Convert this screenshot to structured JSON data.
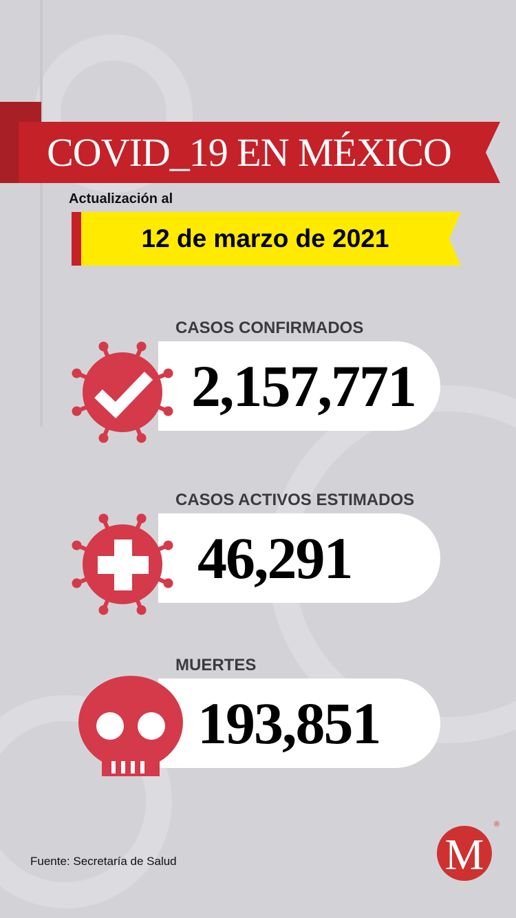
{
  "header": {
    "title": "COVID_19 EN MÉXICO",
    "update_label": "Actualización al",
    "date": "12 de marzo de 2021"
  },
  "stats": [
    {
      "label": "CASOS CONFIRMADOS",
      "value": "2,157,771",
      "icon": "virus-check-icon"
    },
    {
      "label": "CASOS ACTIVOS ESTIMADOS",
      "value": "46,291",
      "icon": "virus-cross-icon"
    },
    {
      "label": "MUERTES",
      "value": "193,851",
      "icon": "skull-icon"
    }
  ],
  "footer": {
    "source": "Fuente: Secretaría de Salud",
    "logo_letter": "M",
    "registered": "®"
  },
  "colors": {
    "background": "#d3d3d7",
    "banner_red": "#c42129",
    "icon_red": "#d43a4a",
    "yellow": "#ffea00"
  }
}
